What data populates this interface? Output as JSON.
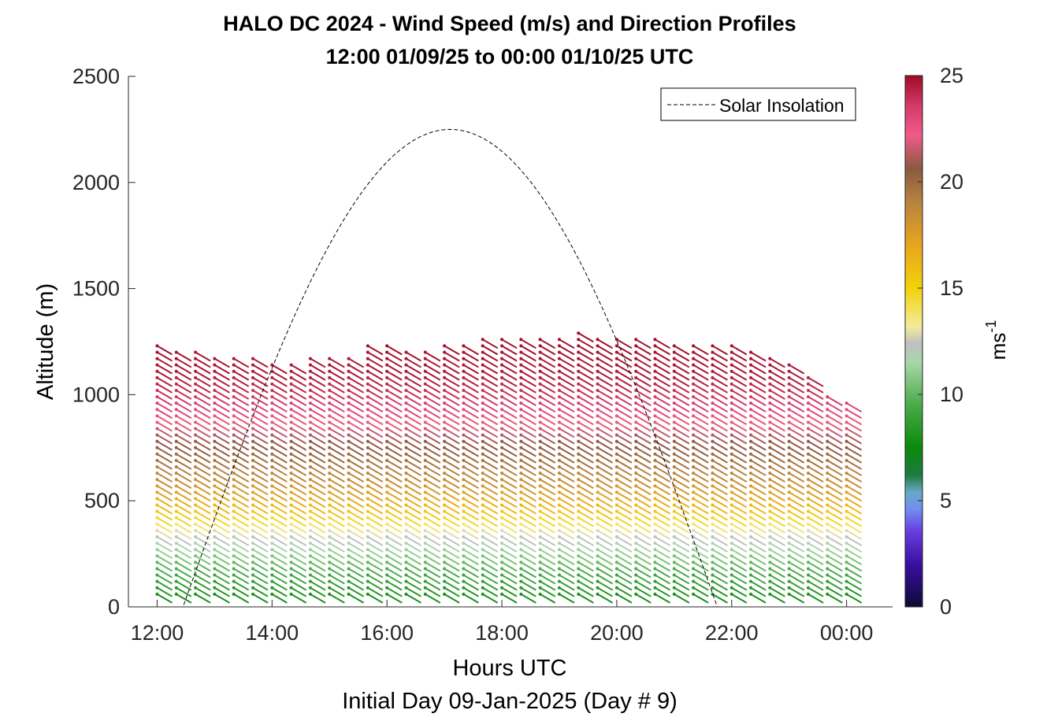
{
  "chart_data": {
    "type": "scatter",
    "subtype": "wind-barb-profile",
    "title": "HALO DC 2024 - Wind Speed (m/s) and Direction Profiles",
    "subtitle": "12:00 01/09/25 to 00:00 01/10/25  UTC",
    "xlabel": "Hours UTC",
    "footer": "Initial Day 09-Jan-2025 (Day # 9)",
    "ylabel": "Altitude (m)",
    "xlim": [
      11.5,
      24.8
    ],
    "ylim": [
      0,
      2500
    ],
    "x_ticks": [
      12,
      14,
      16,
      18,
      20,
      22,
      24
    ],
    "x_tick_labels": [
      "12:00",
      "14:00",
      "16:00",
      "18:00",
      "20:00",
      "22:00",
      "00:00"
    ],
    "y_ticks": [
      0,
      500,
      1000,
      1500,
      2000,
      2500
    ],
    "y_tick_labels": [
      "0",
      "500",
      "1000",
      "1500",
      "2000",
      "2500"
    ],
    "grid": false,
    "legend": {
      "label": "Solar Insolation",
      "placement": "top-right",
      "style": "dashed black line"
    },
    "colorbar": {
      "label": "ms-1",
      "label_base": "ms",
      "label_exp": "-1",
      "range": [
        0,
        25
      ],
      "ticks": [
        0,
        5,
        10,
        15,
        20,
        25
      ],
      "tick_labels": [
        "0",
        "5",
        "10",
        "15",
        "20",
        "25"
      ],
      "stops": [
        {
          "v": 0,
          "color": "#0b0a35"
        },
        {
          "v": 2,
          "color": "#3a0fa0"
        },
        {
          "v": 3.6,
          "color": "#6a3fe0"
        },
        {
          "v": 4.6,
          "color": "#6f90f0"
        },
        {
          "v": 5.4,
          "color": "#6aa8c8"
        },
        {
          "v": 6.2,
          "color": "#1d7a3e"
        },
        {
          "v": 7.5,
          "color": "#0a8a0a"
        },
        {
          "v": 9.5,
          "color": "#4aaa4a"
        },
        {
          "v": 11.5,
          "color": "#a8d8a8"
        },
        {
          "v": 12.4,
          "color": "#bfbfbf"
        },
        {
          "v": 13.2,
          "color": "#f4eb9a"
        },
        {
          "v": 15,
          "color": "#f2d20a"
        },
        {
          "v": 17,
          "color": "#e8a61e"
        },
        {
          "v": 19,
          "color": "#b8843e"
        },
        {
          "v": 20.6,
          "color": "#8a5a42"
        },
        {
          "v": 22.2,
          "color": "#f05a8a"
        },
        {
          "v": 23.6,
          "color": "#d23a68"
        },
        {
          "v": 25,
          "color": "#a00a24"
        }
      ]
    },
    "solar_insolation": {
      "sunrise_hour": 12.45,
      "noon_hour": 17.1,
      "sunset_hour": 21.75,
      "peak_altitude_equiv": 2250
    },
    "profiles": {
      "start_hour": 12.0,
      "step_hours": 0.3333,
      "count": 37,
      "altitude_step_m": 30,
      "lowest_altitude_m": 60,
      "top_altitudes_m": [
        1230,
        1200,
        1200,
        1190,
        1170,
        1170,
        1160,
        1160,
        1170,
        1180,
        1190,
        1240,
        1240,
        1220,
        1220,
        1240,
        1250,
        1260,
        1260,
        1260,
        1260,
        1260,
        1290,
        1260,
        1270,
        1260,
        1260,
        1240,
        1240,
        1240,
        1240,
        1220,
        1180,
        1150,
        1080,
        1000,
        960
      ],
      "speed_bands": [
        {
          "alt_m": 0,
          "speed_ms": 7.2
        },
        {
          "alt_m": 200,
          "speed_ms": 9.8
        },
        {
          "alt_m": 350,
          "speed_ms": 12.6
        },
        {
          "alt_m": 450,
          "speed_ms": 15.5
        },
        {
          "alt_m": 600,
          "speed_ms": 18.4
        },
        {
          "alt_m": 800,
          "speed_ms": 21.0
        },
        {
          "alt_m": 950,
          "speed_ms": 23.2
        },
        {
          "alt_m": 1100,
          "speed_ms": 24.6
        },
        {
          "alt_m": 1300,
          "speed_ms": 25.0
        }
      ],
      "direction_deg": 300
    }
  }
}
